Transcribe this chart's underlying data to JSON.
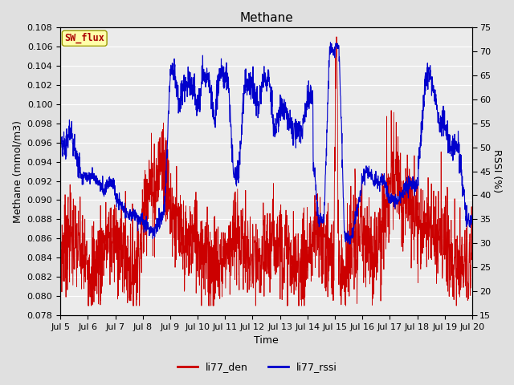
{
  "title": "Methane",
  "ylabel_left": "Methane (mmol/m3)",
  "ylabel_right": "RSSI (%)",
  "xlabel": "Time",
  "annotation_text": "SW_flux",
  "ylim_left": [
    0.078,
    0.108
  ],
  "ylim_right": [
    15,
    75
  ],
  "yticks_left": [
    0.078,
    0.08,
    0.082,
    0.084,
    0.086,
    0.088,
    0.09,
    0.092,
    0.094,
    0.096,
    0.098,
    0.1,
    0.102,
    0.104,
    0.106,
    0.108
  ],
  "yticks_right": [
    15,
    20,
    25,
    30,
    35,
    40,
    45,
    50,
    55,
    60,
    65,
    70,
    75
  ],
  "xtick_labels": [
    "Jul 5",
    "Jul 6",
    "Jul 7",
    "Jul 8",
    "Jul 9",
    "Jul 10",
    "Jul 11",
    "Jul 12",
    "Jul 13",
    "Jul 14",
    "Jul 15",
    "Jul 16",
    "Jul 17",
    "Jul 18",
    "Jul 19",
    "Jul 20"
  ],
  "color_red": "#cc0000",
  "color_blue": "#0000cc",
  "background_color": "#e0e0e0",
  "plot_bg_color": "#ebebeb",
  "grid_color": "#ffffff",
  "legend_labels": [
    "li77_den",
    "li77_rssi"
  ],
  "annotation_bg": "#ffffaa",
  "annotation_border": "#999900",
  "annotation_text_color": "#aa0000",
  "title_fontsize": 11,
  "axis_fontsize": 8,
  "label_fontsize": 9
}
